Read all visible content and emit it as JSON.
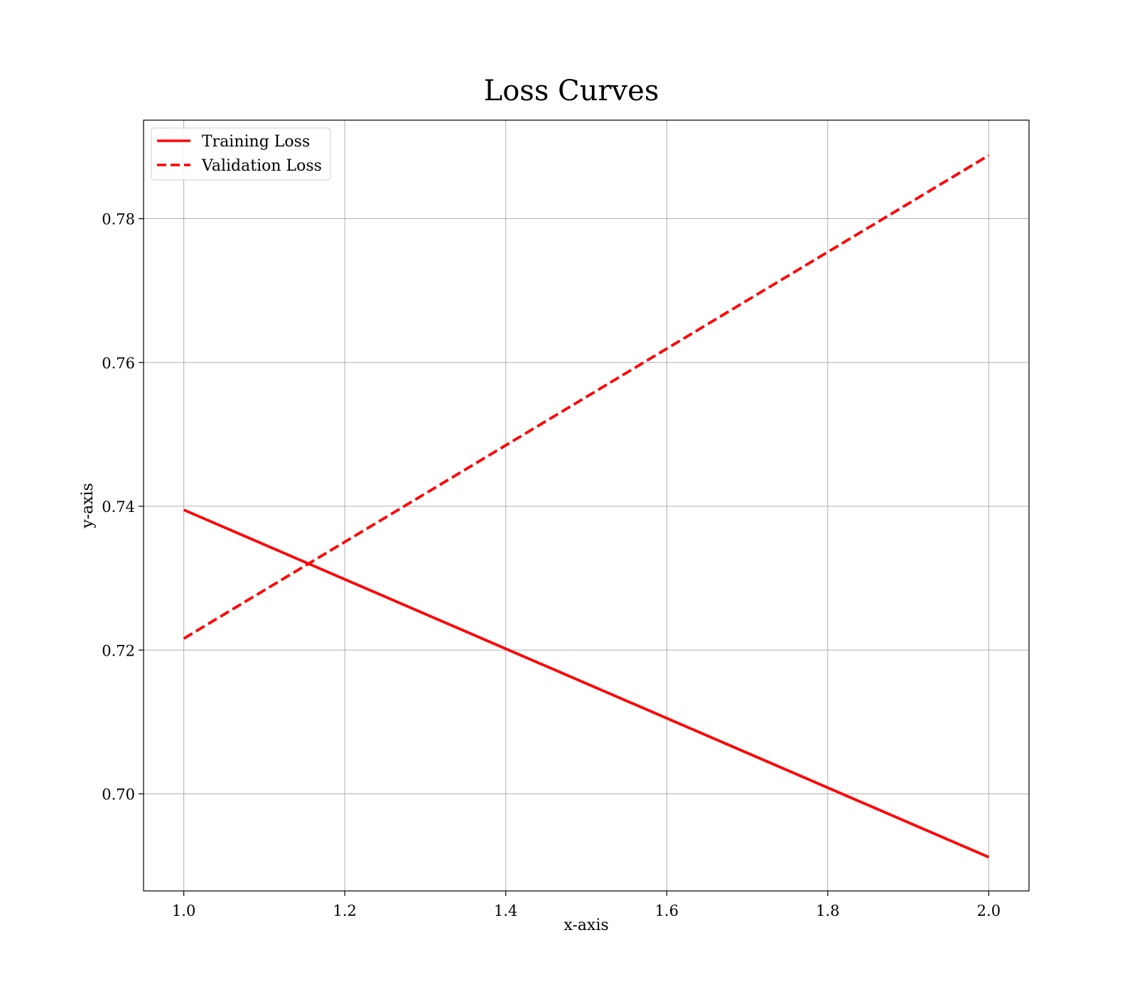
{
  "chart_data": {
    "type": "line",
    "title": "Loss Curves",
    "xlabel": "x-axis",
    "ylabel": "y-axis",
    "x": [
      1.0,
      2.0
    ],
    "series": [
      {
        "name": "Training Loss",
        "values": [
          0.7395,
          0.6912
        ],
        "style": "solid",
        "color": "#ff0000"
      },
      {
        "name": "Validation Loss",
        "values": [
          0.7216,
          0.7888
        ],
        "style": "dashed",
        "color": "#ff0000"
      }
    ],
    "xlim": [
      0.95,
      2.05
    ],
    "ylim": [
      0.6865,
      0.7937
    ],
    "xticks": [
      1.0,
      1.2,
      1.4,
      1.6,
      1.8,
      2.0
    ],
    "xtick_labels": [
      "1.0",
      "1.2",
      "1.4",
      "1.6",
      "1.8",
      "2.0"
    ],
    "yticks": [
      0.7,
      0.72,
      0.74,
      0.76,
      0.78
    ],
    "ytick_labels": [
      "0.70",
      "0.72",
      "0.74",
      "0.76",
      "0.78"
    ],
    "grid": true,
    "legend_position": "top-left",
    "grid_color": "#b0b0b0"
  }
}
